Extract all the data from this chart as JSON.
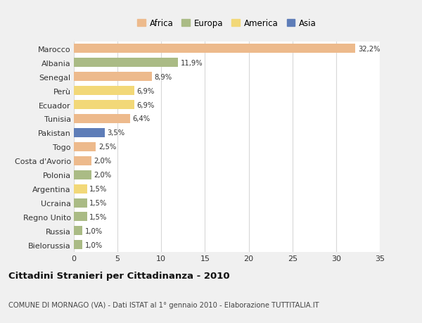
{
  "countries": [
    "Marocco",
    "Albania",
    "Senegal",
    "Perù",
    "Ecuador",
    "Tunisia",
    "Pakistan",
    "Togo",
    "Costa d'Avorio",
    "Polonia",
    "Argentina",
    "Ucraina",
    "Regno Unito",
    "Russia",
    "Bielorussia"
  ],
  "values": [
    32.2,
    11.9,
    8.9,
    6.9,
    6.9,
    6.4,
    3.5,
    2.5,
    2.0,
    2.0,
    1.5,
    1.5,
    1.5,
    1.0,
    1.0
  ],
  "labels": [
    "32,2%",
    "11,9%",
    "8,9%",
    "6,9%",
    "6,9%",
    "6,4%",
    "3,5%",
    "2,5%",
    "2,0%",
    "2,0%",
    "1,5%",
    "1,5%",
    "1,5%",
    "1,0%",
    "1,0%"
  ],
  "colors": [
    "#EDBA8C",
    "#AABB85",
    "#EDBA8C",
    "#F2D878",
    "#F2D878",
    "#EDBA8C",
    "#5E7DB8",
    "#EDBA8C",
    "#EDBA8C",
    "#AABB85",
    "#F2D878",
    "#AABB85",
    "#AABB85",
    "#AABB85",
    "#AABB85"
  ],
  "legend_labels": [
    "Africa",
    "Europa",
    "America",
    "Asia"
  ],
  "legend_colors": [
    "#EDBA8C",
    "#AABB85",
    "#F2D878",
    "#5E7DB8"
  ],
  "title": "Cittadini Stranieri per Cittadinanza - 2010",
  "subtitle": "COMUNE DI MORNAGO (VA) - Dati ISTAT al 1° gennaio 2010 - Elaborazione TUTTITALIA.IT",
  "xlim": [
    0,
    35
  ],
  "xticks": [
    0,
    5,
    10,
    15,
    20,
    25,
    30,
    35
  ],
  "background_color": "#f0f0f0",
  "plot_background": "#ffffff",
  "grid_color": "#d8d8d8",
  "bar_height": 0.65
}
